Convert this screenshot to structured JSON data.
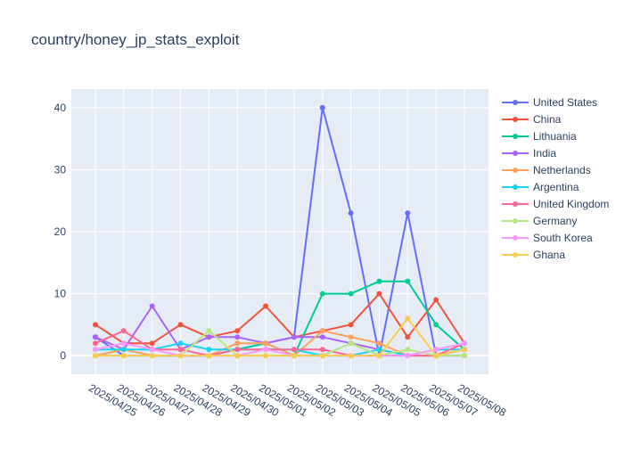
{
  "chart_data": {
    "type": "line",
    "title": "country/honey_jp_stats_exploit",
    "xlabel": "",
    "ylabel": "",
    "x": [
      "2025/04/25",
      "2025/04/26",
      "2025/04/27",
      "2025/04/28",
      "2025/04/29",
      "2025/04/30",
      "2025/05/01",
      "2025/05/02",
      "2025/05/03",
      "2025/05/04",
      "2025/05/05",
      "2025/05/06",
      "2025/05/07",
      "2025/05/08"
    ],
    "y_range": [
      -3,
      43
    ],
    "y_ticks": [
      0,
      10,
      20,
      30,
      40
    ],
    "grid": true,
    "legend_position": "right",
    "series": [
      {
        "name": "United States",
        "color": "#636efa",
        "values": [
          3,
          0,
          0,
          0,
          0,
          1,
          2,
          3,
          40,
          23,
          0,
          23,
          0,
          0
        ]
      },
      {
        "name": "China",
        "color": "#ef553b",
        "values": [
          5,
          2,
          2,
          5,
          3,
          4,
          8,
          3,
          4,
          5,
          10,
          3,
          9,
          2
        ]
      },
      {
        "name": "Lithuania",
        "color": "#00cc96",
        "values": [
          0,
          1,
          0,
          0,
          0,
          1,
          2,
          0,
          10,
          10,
          12,
          12,
          5,
          1
        ]
      },
      {
        "name": "India",
        "color": "#ab63fa",
        "values": [
          3,
          1,
          8,
          1,
          3,
          3,
          2,
          3,
          3,
          2,
          1,
          0,
          0,
          1
        ]
      },
      {
        "name": "Netherlands",
        "color": "#ffa15a",
        "values": [
          0,
          1,
          0,
          0,
          0,
          2,
          2,
          0,
          4,
          3,
          2,
          0,
          0,
          1
        ]
      },
      {
        "name": "Argentina",
        "color": "#19d3f3",
        "values": [
          1,
          1,
          1,
          2,
          1,
          1,
          1,
          1,
          0,
          0,
          1,
          0,
          1,
          1
        ]
      },
      {
        "name": "United Kingdom",
        "color": "#ff6692",
        "values": [
          2,
          4,
          1,
          1,
          0,
          1,
          1,
          1,
          1,
          0,
          0,
          0,
          0,
          2
        ]
      },
      {
        "name": "Germany",
        "color": "#b6e880",
        "values": [
          0,
          0,
          0,
          0,
          4,
          0,
          0,
          0,
          0,
          2,
          0,
          1,
          0,
          0
        ]
      },
      {
        "name": "South Korea",
        "color": "#ff97ff",
        "values": [
          1,
          2,
          1,
          0,
          0,
          0,
          1,
          0,
          0,
          0,
          0,
          0,
          1,
          2
        ]
      },
      {
        "name": "Ghana",
        "color": "#fecb52",
        "values": [
          0,
          0,
          0,
          0,
          0,
          0,
          0,
          0,
          0,
          0,
          0,
          6,
          0,
          1
        ]
      }
    ]
  }
}
